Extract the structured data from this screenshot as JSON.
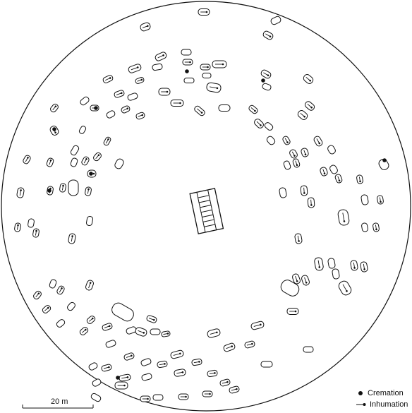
{
  "figure": {
    "type": "cemetery plan",
    "legend": {
      "cremation_label": "Cremation",
      "inhumation_label": "Inhumation",
      "cremation_symbol": "filled-dot",
      "inhumation_symbol": "arrow"
    },
    "scale_bar": {
      "label": "20 m"
    },
    "central_feature": "ladder-like rectangular structure",
    "colors": {
      "ink": "#111111",
      "paper": "#ffffff"
    }
  }
}
